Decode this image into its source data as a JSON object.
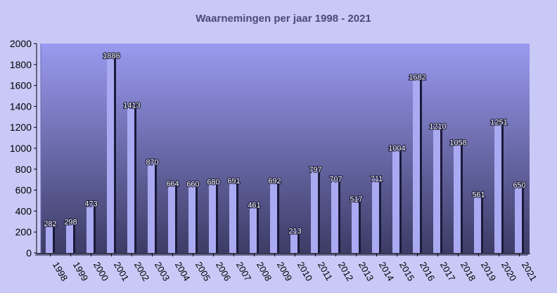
{
  "chart_data": {
    "type": "bar",
    "title": "Waarnemingen per jaar 1998 - 2021",
    "xlabel": "",
    "ylabel": "",
    "categories": [
      "1998",
      "1999",
      "2000",
      "2001",
      "2002",
      "2003",
      "2004",
      "2005",
      "2006",
      "2007",
      "2008",
      "2009",
      "2010",
      "2011",
      "2012",
      "2013",
      "2014",
      "2015",
      "2016",
      "2017",
      "2018",
      "2019",
      "2020",
      "2021"
    ],
    "values": [
      282,
      298,
      473,
      1886,
      1413,
      870,
      664,
      660,
      680,
      691,
      461,
      692,
      213,
      797,
      707,
      517,
      711,
      1004,
      1682,
      1210,
      1058,
      561,
      1251,
      650
    ],
    "value_labels": [
      "282",
      "298",
      "473",
      "1886",
      "1413",
      "870",
      "664",
      "660",
      "680",
      "691",
      "461",
      "692",
      "213",
      "797",
      "707",
      "517",
      "711",
      "1004",
      "1682",
      "1210",
      "1058",
      "561",
      "1251",
      "650"
    ],
    "y_ticks": [
      "0",
      "200",
      "400",
      "600",
      "800",
      "1000",
      "1200",
      "1400",
      "1600",
      "1800",
      "2000"
    ],
    "ylim": [
      0,
      2000
    ],
    "grid": false,
    "legend": "none",
    "colors": {
      "page_background": "#c9c9f7",
      "plot_gradient_top": "#9a9af0",
      "plot_gradient_bottom": "#3c3c66",
      "bar_face": "#aaaaf2",
      "bar_shadow": "#1a1a3a",
      "title_color": "#4a4a7a"
    }
  }
}
